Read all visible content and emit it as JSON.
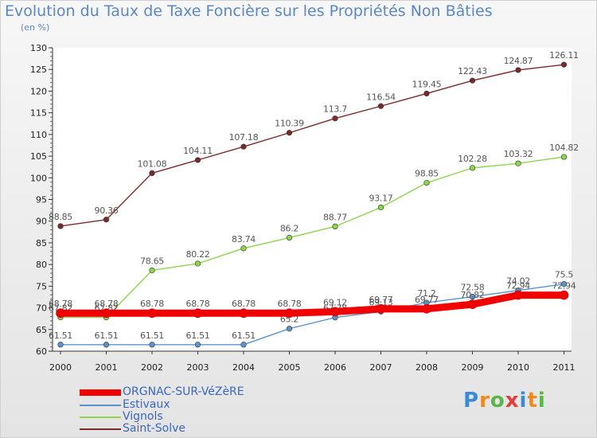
{
  "title": "Evolution du Taux de Taxe Foncière sur les Propriétés Non Bâties",
  "unit_label": "(en %)",
  "brand": "Proxiti",
  "chart_data": {
    "type": "line",
    "title": "Evolution du Taux de Taxe Foncière sur les Propriétés Non Bâties",
    "ylabel": "(en %)",
    "xlabel": "",
    "ylim": [
      60,
      130
    ],
    "yticks": [
      60,
      65,
      70,
      75,
      80,
      85,
      90,
      95,
      100,
      105,
      110,
      115,
      120,
      125,
      130
    ],
    "categories": [
      "2000",
      "2001",
      "2002",
      "2003",
      "2004",
      "2005",
      "2006",
      "2007",
      "2008",
      "2009",
      "2010",
      "2011"
    ],
    "grid": false,
    "series": [
      {
        "name": "Saint-Solve",
        "color": "#7b2a2a",
        "values": [
          88.85,
          90.36,
          101.08,
          104.11,
          107.18,
          110.39,
          113.7,
          116.54,
          119.45,
          122.43,
          124.87,
          126.11
        ],
        "labels": [
          "88.85",
          "90.36",
          "101.08",
          "104.11",
          "107.18",
          "110.39",
          "113.7",
          "116.54",
          "119.45",
          "122.43",
          "124.87",
          "126.11"
        ]
      },
      {
        "name": "Vignols",
        "color": "#8cd64c",
        "values": [
          67.82,
          67.82,
          78.65,
          80.22,
          83.74,
          86.2,
          88.77,
          93.17,
          98.85,
          102.28,
          103.32,
          104.82
        ],
        "labels": [
          "67.82",
          "67.82",
          "78.65",
          "80.22",
          "83.74",
          "86.2",
          "88.77",
          "93.17",
          "98.85",
          "102.28",
          "103.32",
          "104.82"
        ]
      },
      {
        "name": "Estivaux",
        "color": "#5a94cf",
        "values": [
          61.51,
          61.51,
          61.51,
          61.51,
          61.51,
          65.2,
          67.78,
          69.13,
          71.2,
          72.58,
          74.02,
          75.5
        ],
        "labels": [
          "61.51",
          "61.51",
          "61.51",
          "61.51",
          "61.51",
          "65.2",
          "67.78",
          "69.13",
          "71.2",
          "72.58",
          "74.02",
          "75.5"
        ]
      },
      {
        "name": "ORGNAC-SUR-VéZèRE",
        "color": "#f20000",
        "values": [
          68.78,
          68.78,
          68.78,
          68.78,
          68.78,
          68.78,
          69.12,
          69.77,
          69.77,
          70.82,
          72.94,
          72.94
        ],
        "labels": [
          "68.78",
          "68.78",
          "68.78",
          "68.78",
          "68.78",
          "68.78",
          "69.12",
          "69.77",
          "69.77",
          "70.82",
          "72.94",
          "72.94"
        ]
      }
    ],
    "legend": {
      "position": "bottom-left",
      "entries": [
        "ORGNAC-SUR-VéZèRE",
        "Estivaux",
        "Vignols",
        "Saint-Solve"
      ]
    }
  }
}
